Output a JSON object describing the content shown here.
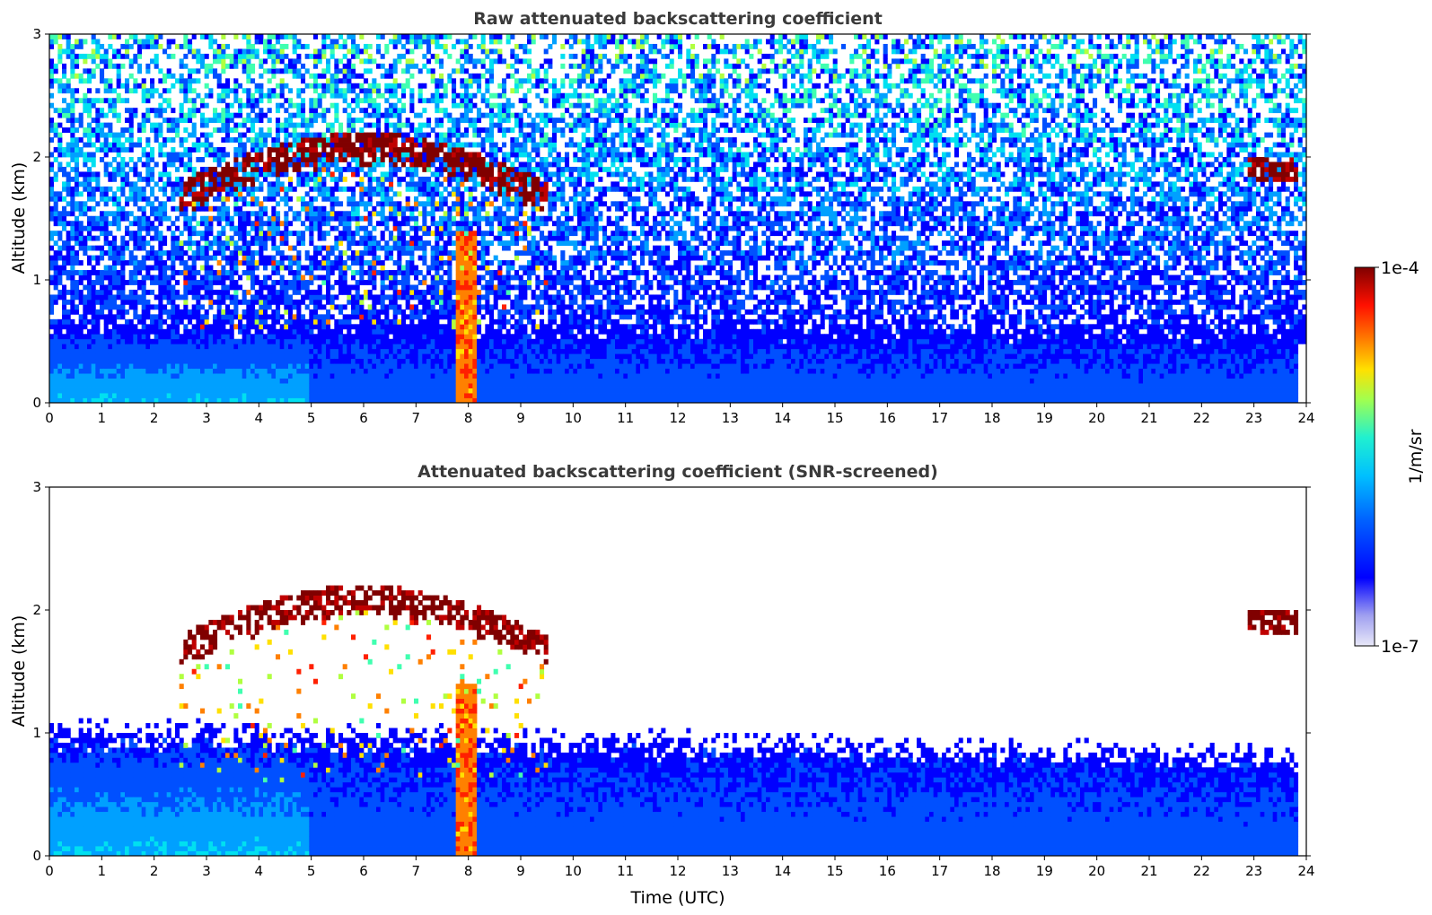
{
  "chart_data": [
    {
      "type": "heatmap",
      "title": "Raw attenuated backscattering coefficient",
      "xlabel": "",
      "ylabel": "Altitude (km)",
      "xlim": [
        0,
        24
      ],
      "ylim": [
        0,
        3
      ],
      "xticks": [
        "0",
        "1",
        "2",
        "3",
        "4",
        "5",
        "6",
        "7",
        "8",
        "9",
        "10",
        "11",
        "12",
        "13",
        "14",
        "15",
        "16",
        "17",
        "18",
        "19",
        "20",
        "21",
        "22",
        "23",
        "24"
      ],
      "yticks": [
        "0",
        "1",
        "2",
        "3"
      ],
      "screened": false,
      "features": [
        {
          "kind": "boundary_layer",
          "hours": [
            0,
            23.8
          ],
          "top_km": [
            0.6,
            0.55
          ]
        },
        {
          "kind": "noise",
          "altitude_km": [
            0.5,
            3.0
          ]
        },
        {
          "kind": "cloud_layer",
          "hours": [
            2.5,
            9.5
          ],
          "base_km": [
            0.6,
            1.3
          ],
          "top_km": [
            1.8,
            2.2
          ]
        },
        {
          "kind": "precipitation",
          "hour": 7.95,
          "altitude_km": [
            0,
            1.4
          ]
        },
        {
          "kind": "cloud_layer",
          "hours": [
            22.9,
            23.8
          ],
          "altitude_km": [
            1.8,
            2.0
          ]
        }
      ]
    },
    {
      "type": "heatmap",
      "title": "Attenuated backscattering coefficient (SNR-screened)",
      "xlabel": "Time (UTC)",
      "ylabel": "Altitude (km)",
      "xlim": [
        0,
        24
      ],
      "ylim": [
        0,
        3
      ],
      "xticks": [
        "0",
        "1",
        "2",
        "3",
        "4",
        "5",
        "6",
        "7",
        "8",
        "9",
        "10",
        "11",
        "12",
        "13",
        "14",
        "15",
        "16",
        "17",
        "18",
        "19",
        "20",
        "21",
        "22",
        "23",
        "24"
      ],
      "yticks": [
        "0",
        "1",
        "2",
        "3"
      ],
      "screened": true,
      "features": [
        {
          "kind": "boundary_layer",
          "hours": [
            0,
            23.8
          ],
          "top_km": [
            1.0,
            0.8
          ]
        },
        {
          "kind": "cloud_layer",
          "hours": [
            2.5,
            9.5
          ],
          "base_km": [
            0.6,
            1.3
          ],
          "top_km": [
            1.8,
            2.2
          ]
        },
        {
          "kind": "precipitation",
          "hour": 7.95,
          "altitude_km": [
            0,
            1.4
          ]
        },
        {
          "kind": "cloud_layer",
          "hours": [
            22.9,
            23.8
          ],
          "altitude_km": [
            1.8,
            2.0
          ]
        }
      ]
    }
  ],
  "colorbar": {
    "label": "1/m/sr",
    "max_label": "1e-4",
    "min_label": "1e-7",
    "scale": "log",
    "colormap": "jet",
    "colors": [
      "#e8e8f8",
      "#b0b0f0",
      "#7878f0",
      "#0000ff",
      "#0050ff",
      "#00a0ff",
      "#00e0f0",
      "#40ffb0",
      "#b0ff40",
      "#ffe000",
      "#ff8000",
      "#ff2000",
      "#c00000",
      "#800000"
    ]
  }
}
